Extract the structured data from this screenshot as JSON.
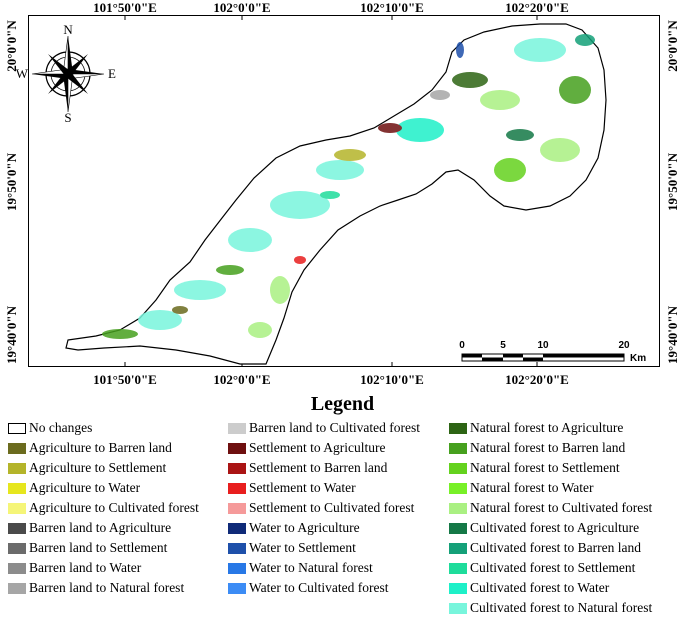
{
  "map": {
    "coords_top": [
      "101°50'0\"E",
      "102°0'0\"E",
      "102°10'0\"E",
      "102°20'0\"E"
    ],
    "coords_bottom": [
      "101°50'0\"E",
      "102°0'0\"E",
      "102°10'0\"E",
      "102°20'0\"E"
    ],
    "coords_left": [
      "20°0'0\"N",
      "19°50'0\"N",
      "19°40'0\"N"
    ],
    "coords_right": [
      "20°0'0\"N",
      "19°50'0\"N",
      "19°40'0\"N"
    ],
    "compass": {
      "n": "N",
      "s": "S",
      "e": "E",
      "w": "W"
    },
    "scale": {
      "ticks": [
        "0",
        "5",
        "10",
        "20"
      ],
      "unit": "Km"
    },
    "colors": {
      "study_area_fill": "#ffffff",
      "outline": "#000000"
    }
  },
  "legend": {
    "title": "Legend",
    "columns": [
      [
        {
          "label": "No changes",
          "color": "#ffffff"
        },
        {
          "label": "Agriculture to Barren land",
          "color": "#6b6b1e"
        },
        {
          "label": "Agriculture to Settlement",
          "color": "#b4b42a"
        },
        {
          "label": "Agriculture to Water",
          "color": "#e6e61e"
        },
        {
          "label": "Agriculture to Cultivated forest",
          "color": "#f5f578"
        },
        {
          "label": "Barren land to Agriculture",
          "color": "#4a4a4a"
        },
        {
          "label": "Barren land to Settlement",
          "color": "#6b6b6b"
        },
        {
          "label": "Barren land to Water",
          "color": "#8c8c8c"
        },
        {
          "label": "Barren land to Natural forest",
          "color": "#a6a6a6"
        }
      ],
      [
        {
          "label": "Barren land to Cultivated forest",
          "color": "#cccccc"
        },
        {
          "label": "Settlement to Agriculture",
          "color": "#6e0f0f"
        },
        {
          "label": "Settlement to Barren land",
          "color": "#aa1414"
        },
        {
          "label": "Settlement to Water",
          "color": "#e81e1e"
        },
        {
          "label": "Settlement to Cultivated forest",
          "color": "#f59a9a"
        },
        {
          "label": "Water to Agriculture",
          "color": "#0f2a78"
        },
        {
          "label": "Water to Settlement",
          "color": "#1e50aa"
        },
        {
          "label": "Water to Natural forest",
          "color": "#2878e6"
        },
        {
          "label": "Water to Cultivated forest",
          "color": "#3c8cf5"
        }
      ],
      [
        {
          "label": "Natural forest to Agriculture",
          "color": "#2d6414"
        },
        {
          "label": "Natural forest to Barren land",
          "color": "#46a01e"
        },
        {
          "label": "Natural forest to Settlement",
          "color": "#64d21e"
        },
        {
          "label": "Natural forest to Water",
          "color": "#78f028"
        },
        {
          "label": "Natural forest to Cultivated forest",
          "color": "#aaf082"
        },
        {
          "label": "Cultivated forest to Agriculture",
          "color": "#147846"
        },
        {
          "label": "Cultivated forest to Barren land",
          "color": "#14a078"
        },
        {
          "label": "Cultivated forest to Settlement",
          "color": "#1edc9b"
        },
        {
          "label": "Cultivated forest to Water",
          "color": "#1ef0c8"
        },
        {
          "label": "Cultivated forest to Natural forest",
          "color": "#78f5dc"
        }
      ]
    ]
  }
}
